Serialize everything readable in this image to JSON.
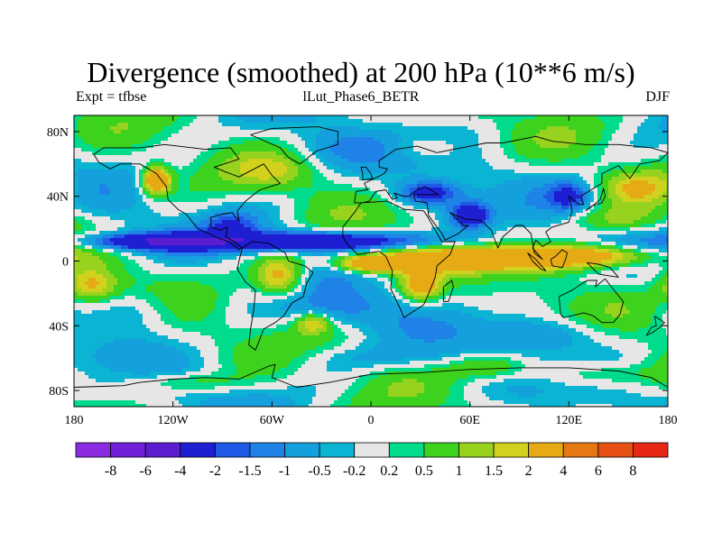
{
  "title": "Divergence (smoothed) at 200 hPa (10**6 m/s)",
  "subtitle_left": "Expt = tfbse",
  "subtitle_center": "lLut_Phase6_BETR",
  "subtitle_right": "DJF",
  "map": {
    "lon_range": [
      -180,
      180
    ],
    "lat_range": [
      -90,
      90
    ],
    "lon_ticks": [
      {
        "value": -180,
        "label": "180"
      },
      {
        "value": -120,
        "label": "120W"
      },
      {
        "value": -60,
        "label": "60W"
      },
      {
        "value": 0,
        "label": "0"
      },
      {
        "value": 60,
        "label": "60E"
      },
      {
        "value": 120,
        "label": "120E"
      },
      {
        "value": 180,
        "label": "180"
      }
    ],
    "lat_ticks": [
      {
        "value": 80,
        "label": "80N"
      },
      {
        "value": 40,
        "label": "40N"
      },
      {
        "value": 0,
        "label": "0"
      },
      {
        "value": -40,
        "label": "40S"
      },
      {
        "value": -80,
        "label": "80S"
      }
    ]
  },
  "colorbar": {
    "colors": [
      "#8a2be2",
      "#7020d8",
      "#5a1ecf",
      "#1e1ed2",
      "#1e5ae6",
      "#1e82e6",
      "#14a0dc",
      "#0ab4d2",
      "#e6e6e6",
      "#00dc8c",
      "#3cd21e",
      "#96d21e",
      "#d2d21e",
      "#e6aa14",
      "#e67814",
      "#e65014",
      "#e62814"
    ],
    "labels": [
      "-8",
      "-6",
      "-4",
      "-2",
      "-1.5",
      "-1",
      "-0.5",
      "-0.2",
      "0.2",
      "0.5",
      "1",
      "1.5",
      "2",
      "4",
      "6",
      "8"
    ]
  },
  "field_blobs": [
    {
      "lon": -35,
      "lat": 12,
      "rlon": 80,
      "rlat": 6,
      "v": -3.8
    },
    {
      "lon": -135,
      "lat": 12,
      "rlon": 40,
      "rlat": 5,
      "v": -3.0
    },
    {
      "lon": 60,
      "lat": 28,
      "rlon": 12,
      "rlat": 8,
      "v": -3.0
    },
    {
      "lon": 35,
      "lat": 42,
      "rlon": 18,
      "rlat": 7,
      "v": -2.5
    },
    {
      "lon": 120,
      "lat": 40,
      "rlon": 12,
      "rlat": 8,
      "v": -2.0
    },
    {
      "lon": -85,
      "lat": 22,
      "rlon": 15,
      "rlat": 8,
      "v": -1.5
    },
    {
      "lon": -20,
      "lat": -30,
      "rlon": 30,
      "rlat": 12,
      "v": -1.2
    },
    {
      "lon": 100,
      "lat": -45,
      "rlon": 40,
      "rlat": 10,
      "v": -1.0
    },
    {
      "lon": -140,
      "lat": -30,
      "rlon": 25,
      "rlat": 12,
      "v": -0.8
    },
    {
      "lon": 0,
      "lat": 70,
      "rlon": 40,
      "rlat": 10,
      "v": -0.8
    },
    {
      "lon": 10,
      "lat": -60,
      "rlon": 60,
      "rlat": 8,
      "v": -0.6
    },
    {
      "lon": 60,
      "lat": 2,
      "rlon": 70,
      "rlat": 8,
      "v": 3.0
    },
    {
      "lon": 140,
      "lat": 3,
      "rlon": 35,
      "rlat": 7,
      "v": 2.5
    },
    {
      "lon": -55,
      "lat": -10,
      "rlon": 15,
      "rlat": 12,
      "v": 2.5
    },
    {
      "lon": 30,
      "lat": -15,
      "rlon": 12,
      "rlat": 10,
      "v": 2.5
    },
    {
      "lon": -130,
      "lat": 50,
      "rlon": 8,
      "rlat": 8,
      "v": 4.0
    },
    {
      "lon": 0,
      "lat": -2,
      "rlon": 20,
      "rlat": 5,
      "v": 3.0
    },
    {
      "lon": -35,
      "lat": -38,
      "rlon": 10,
      "rlat": 6,
      "v": 2.0
    },
    {
      "lon": -170,
      "lat": -15,
      "rlon": 15,
      "rlat": 10,
      "v": 2.0
    },
    {
      "lon": 160,
      "lat": 45,
      "rlon": 20,
      "rlat": 10,
      "v": 1.5
    },
    {
      "lon": 30,
      "lat": 70,
      "rlon": 25,
      "rlat": 8,
      "v": 1.0
    },
    {
      "lon": -60,
      "lat": 55,
      "rlon": 25,
      "rlat": 10,
      "v": 1.0
    },
    {
      "lon": 140,
      "lat": -70,
      "rlon": 40,
      "rlat": 8,
      "v": 1.0
    },
    {
      "lon": 70,
      "lat": -65,
      "rlon": 25,
      "rlat": 8,
      "v": 1.5
    },
    {
      "lon": -110,
      "lat": -75,
      "rlon": 30,
      "rlat": 6,
      "v": 1.0
    },
    {
      "lon": 150,
      "lat": 25,
      "rlon": 30,
      "rlat": 8,
      "v": 1.2
    }
  ],
  "coastlines": [
    {
      "name": "north-america",
      "points": [
        [
          -168,
          66
        ],
        [
          -162,
          70
        ],
        [
          -140,
          70
        ],
        [
          -125,
          72
        ],
        [
          -100,
          69
        ],
        [
          -85,
          70
        ],
        [
          -80,
          63
        ],
        [
          -95,
          58
        ],
        [
          -88,
          55
        ],
        [
          -80,
          52
        ],
        [
          -65,
          60
        ],
        [
          -60,
          53
        ],
        [
          -55,
          48
        ],
        [
          -67,
          44
        ],
        [
          -70,
          42
        ],
        [
          -76,
          37
        ],
        [
          -81,
          31
        ],
        [
          -80,
          25
        ],
        [
          -82,
          27
        ],
        [
          -84,
          30
        ],
        [
          -90,
          29
        ],
        [
          -97,
          27
        ],
        [
          -97,
          21
        ],
        [
          -91,
          19
        ],
        [
          -87,
          21
        ],
        [
          -88,
          15
        ],
        [
          -83,
          12
        ],
        [
          -78,
          8
        ],
        [
          -80,
          7
        ],
        [
          -86,
          12
        ],
        [
          -92,
          14
        ],
        [
          -105,
          20
        ],
        [
          -112,
          29
        ],
        [
          -117,
          32
        ],
        [
          -123,
          38
        ],
        [
          -124,
          46
        ],
        [
          -130,
          54
        ],
        [
          -140,
          60
        ],
        [
          -152,
          60
        ],
        [
          -158,
          57
        ],
        [
          -165,
          61
        ],
        [
          -168,
          66
        ]
      ]
    },
    {
      "name": "greenland",
      "points": [
        [
          -73,
          78
        ],
        [
          -60,
          82
        ],
        [
          -32,
          83
        ],
        [
          -20,
          80
        ],
        [
          -20,
          72
        ],
        [
          -33,
          68
        ],
        [
          -43,
          60
        ],
        [
          -50,
          64
        ],
        [
          -55,
          70
        ],
        [
          -73,
          78
        ]
      ]
    },
    {
      "name": "south-america",
      "points": [
        [
          -78,
          8
        ],
        [
          -72,
          12
        ],
        [
          -62,
          11
        ],
        [
          -52,
          5
        ],
        [
          -50,
          0
        ],
        [
          -40,
          -3
        ],
        [
          -35,
          -7
        ],
        [
          -39,
          -14
        ],
        [
          -41,
          -22
        ],
        [
          -48,
          -26
        ],
        [
          -53,
          -34
        ],
        [
          -58,
          -38
        ],
        [
          -65,
          -42
        ],
        [
          -68,
          -50
        ],
        [
          -70,
          -55
        ],
        [
          -74,
          -52
        ],
        [
          -73,
          -42
        ],
        [
          -71,
          -30
        ],
        [
          -70,
          -18
        ],
        [
          -76,
          -13
        ],
        [
          -81,
          -5
        ],
        [
          -80,
          0
        ],
        [
          -78,
          8
        ]
      ]
    },
    {
      "name": "africa",
      "points": [
        [
          -17,
          21
        ],
        [
          -10,
          30
        ],
        [
          -6,
          36
        ],
        [
          10,
          37
        ],
        [
          20,
          32
        ],
        [
          32,
          31
        ],
        [
          34,
          28
        ],
        [
          43,
          12
        ],
        [
          51,
          12
        ],
        [
          48,
          4
        ],
        [
          40,
          -3
        ],
        [
          39,
          -10
        ],
        [
          35,
          -20
        ],
        [
          32,
          -27
        ],
        [
          20,
          -35
        ],
        [
          18,
          -30
        ],
        [
          12,
          -17
        ],
        [
          13,
          -6
        ],
        [
          9,
          3
        ],
        [
          5,
          6
        ],
        [
          -8,
          4
        ],
        [
          -14,
          10
        ],
        [
          -17,
          15
        ],
        [
          -17,
          21
        ]
      ]
    },
    {
      "name": "eurasia",
      "points": [
        [
          -10,
          36
        ],
        [
          -9,
          43
        ],
        [
          -2,
          44
        ],
        [
          -4,
          48
        ],
        [
          2,
          51
        ],
        [
          8,
          54
        ],
        [
          10,
          57
        ],
        [
          5,
          58
        ],
        [
          5,
          62
        ],
        [
          15,
          69
        ],
        [
          28,
          71
        ],
        [
          40,
          67
        ],
        [
          55,
          70
        ],
        [
          70,
          73
        ],
        [
          80,
          73
        ],
        [
          100,
          77
        ],
        [
          110,
          74
        ],
        [
          130,
          72
        ],
        [
          150,
          72
        ],
        [
          170,
          70
        ],
        [
          180,
          67
        ],
        [
          175,
          62
        ],
        [
          163,
          60
        ],
        [
          157,
          51
        ],
        [
          150,
          59
        ],
        [
          140,
          54
        ],
        [
          140,
          48
        ],
        [
          132,
          43
        ],
        [
          127,
          40
        ],
        [
          129,
          35
        ],
        [
          126,
          35
        ],
        [
          120,
          40
        ],
        [
          122,
          31
        ],
        [
          120,
          24
        ],
        [
          110,
          21
        ],
        [
          106,
          18
        ],
        [
          109,
          12
        ],
        [
          104,
          9
        ],
        [
          100,
          13
        ],
        [
          98,
          8
        ],
        [
          104,
          1
        ],
        [
          99,
          5
        ],
        [
          97,
          17
        ],
        [
          92,
          22
        ],
        [
          88,
          22
        ],
        [
          80,
          15
        ],
        [
          77,
          8
        ],
        [
          73,
          19
        ],
        [
          67,
          25
        ],
        [
          57,
          26
        ],
        [
          52,
          28
        ],
        [
          48,
          30
        ],
        [
          56,
          22
        ],
        [
          59,
          22
        ],
        [
          53,
          17
        ],
        [
          45,
          13
        ],
        [
          43,
          17
        ],
        [
          35,
          28
        ],
        [
          34,
          36
        ],
        [
          27,
          37
        ],
        [
          26,
          41
        ],
        [
          29,
          41
        ],
        [
          41,
          41
        ],
        [
          33,
          46
        ],
        [
          28,
          44
        ],
        [
          23,
          40
        ],
        [
          20,
          40
        ],
        [
          14,
          42
        ],
        [
          16,
          39
        ],
        [
          13,
          38
        ],
        [
          9,
          44
        ],
        [
          3,
          43
        ],
        [
          -1,
          37
        ],
        [
          -5,
          36
        ],
        [
          -10,
          36
        ]
      ]
    },
    {
      "name": "australia",
      "points": [
        [
          114,
          -22
        ],
        [
          122,
          -18
        ],
        [
          131,
          -12
        ],
        [
          137,
          -12
        ],
        [
          136,
          -16
        ],
        [
          142,
          -11
        ],
        [
          145,
          -15
        ],
        [
          153,
          -25
        ],
        [
          151,
          -33
        ],
        [
          147,
          -38
        ],
        [
          140,
          -38
        ],
        [
          135,
          -34
        ],
        [
          129,
          -32
        ],
        [
          117,
          -35
        ],
        [
          115,
          -33
        ],
        [
          114,
          -22
        ]
      ]
    },
    {
      "name": "antarctica",
      "points": [
        [
          -180,
          -78
        ],
        [
          -150,
          -77
        ],
        [
          -140,
          -75
        ],
        [
          -120,
          -73
        ],
        [
          -100,
          -72
        ],
        [
          -80,
          -73
        ],
        [
          -62,
          -65
        ],
        [
          -58,
          -64
        ],
        [
          -60,
          -72
        ],
        [
          -45,
          -78
        ],
        [
          -25,
          -75
        ],
        [
          0,
          -70
        ],
        [
          30,
          -69
        ],
        [
          60,
          -67
        ],
        [
          90,
          -66
        ],
        [
          120,
          -66
        ],
        [
          150,
          -68
        ],
        [
          170,
          -72
        ],
        [
          180,
          -78
        ]
      ]
    },
    {
      "name": "madagascar",
      "points": [
        [
          44,
          -25
        ],
        [
          47,
          -25
        ],
        [
          50,
          -16
        ],
        [
          49,
          -12
        ],
        [
          44,
          -16
        ],
        [
          44,
          -25
        ]
      ]
    },
    {
      "name": "japan",
      "points": [
        [
          130,
          31
        ],
        [
          134,
          34
        ],
        [
          140,
          36
        ],
        [
          142,
          40
        ],
        [
          141,
          45
        ],
        [
          139,
          38
        ],
        [
          133,
          33
        ],
        [
          130,
          31
        ]
      ]
    },
    {
      "name": "britain",
      "points": [
        [
          -5,
          50
        ],
        [
          1,
          51
        ],
        [
          0,
          54
        ],
        [
          -3,
          58
        ],
        [
          -6,
          58
        ],
        [
          -5,
          54
        ],
        [
          -5,
          50
        ]
      ]
    },
    {
      "name": "new-zealand",
      "points": [
        [
          172,
          -34
        ],
        [
          178,
          -38
        ],
        [
          175,
          -41
        ],
        [
          171,
          -44
        ],
        [
          167,
          -46
        ],
        [
          170,
          -41
        ],
        [
          173,
          -40
        ],
        [
          172,
          -34
        ]
      ]
    },
    {
      "name": "borneo",
      "points": [
        [
          109,
          1
        ],
        [
          112,
          3
        ],
        [
          116,
          7
        ],
        [
          119,
          5
        ],
        [
          118,
          1
        ],
        [
          116,
          -4
        ],
        [
          110,
          -3
        ],
        [
          109,
          1
        ]
      ]
    },
    {
      "name": "new-guinea",
      "points": [
        [
          131,
          -1
        ],
        [
          138,
          -2
        ],
        [
          145,
          -4
        ],
        [
          150,
          -10
        ],
        [
          143,
          -9
        ],
        [
          138,
          -8
        ],
        [
          131,
          -1
        ]
      ]
    },
    {
      "name": "sumatra",
      "points": [
        [
          95,
          5
        ],
        [
          100,
          1
        ],
        [
          106,
          -6
        ],
        [
          103,
          -5
        ],
        [
          98,
          0
        ],
        [
          95,
          5
        ]
      ]
    }
  ]
}
